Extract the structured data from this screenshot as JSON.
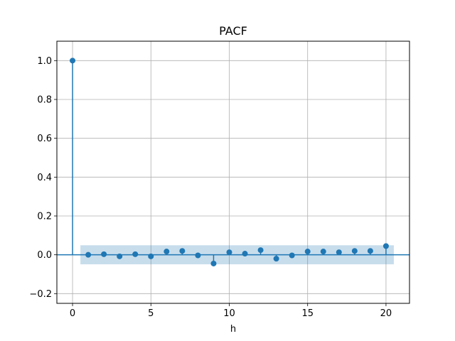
{
  "chart_data": {
    "type": "stem",
    "title": "PACF",
    "xlabel": "h",
    "ylabel": "",
    "xlim": [
      -1,
      21.5
    ],
    "ylim": [
      -0.25,
      1.1
    ],
    "xticks": [
      0,
      5,
      10,
      15,
      20
    ],
    "yticks": [
      -0.2,
      0.0,
      0.2,
      0.4,
      0.6,
      0.8,
      1.0
    ],
    "ytick_labels": [
      "−0.2",
      "0.0",
      "0.2",
      "0.4",
      "0.6",
      "0.8",
      "1.0"
    ],
    "grid": true,
    "lags": [
      0,
      1,
      2,
      3,
      4,
      5,
      6,
      7,
      8,
      9,
      10,
      11,
      12,
      13,
      14,
      15,
      16,
      17,
      18,
      19,
      20
    ],
    "values": [
      1.0,
      0.0,
      0.003,
      -0.008,
      0.003,
      -0.008,
      0.017,
      0.02,
      -0.003,
      -0.045,
      0.013,
      0.006,
      0.024,
      -0.02,
      -0.003,
      0.017,
      0.017,
      0.013,
      0.02,
      0.02,
      0.045
    ],
    "confidence_band": {
      "x_range": [
        0.5,
        20.5
      ],
      "lower": -0.049,
      "upper": 0.049
    },
    "colors": {
      "stem": "#1f77b4",
      "band": "#1f77b4",
      "grid": "#b0b0b0"
    }
  }
}
